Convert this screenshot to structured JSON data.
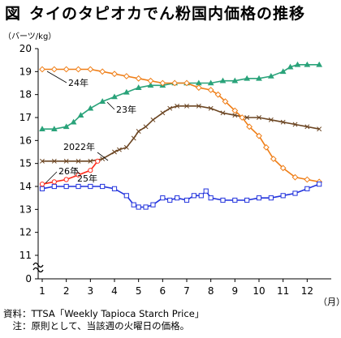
{
  "figure": {
    "label": "図",
    "title": "タイのタピオカでん粉国内価格の推移"
  },
  "unit_label": "（バーツ/kg）",
  "month_unit": "（月）",
  "notes": {
    "source": "資料：TTSA「Weekly Tapioca Starch Price」",
    "note": "　注：原則として、当該週の火曜日の価格。"
  },
  "chart_data": {
    "type": "line",
    "x_ticks": [
      "1",
      "2",
      "3",
      "4",
      "5",
      "6",
      "7",
      "8",
      "9",
      "10",
      "11",
      "12"
    ],
    "y_ticks": [
      "0",
      "11",
      "12",
      "13",
      "14",
      "15",
      "16",
      "17",
      "18",
      "19",
      "20"
    ],
    "ylim": [
      11,
      20
    ],
    "axis_break": true,
    "grid": false,
    "series": [
      {
        "name": "2022年",
        "color": "#6b4522",
        "marker": "x",
        "x": [
          1,
          1.5,
          2,
          2.5,
          3,
          3.5,
          4,
          4.2,
          4.5,
          4.8,
          5,
          5.3,
          5.6,
          6,
          6.3,
          6.6,
          7,
          7.5,
          8,
          8.5,
          9,
          9.5,
          10,
          10.5,
          11,
          11.5,
          12,
          12.5
        ],
        "y": [
          15.1,
          15.1,
          15.1,
          15.1,
          15.1,
          15.2,
          15.5,
          15.6,
          15.7,
          16.1,
          16.4,
          16.6,
          16.9,
          17.2,
          17.4,
          17.5,
          17.5,
          17.5,
          17.4,
          17.2,
          17.1,
          17.0,
          17.0,
          16.9,
          16.8,
          16.7,
          16.6,
          16.5
        ]
      },
      {
        "name": "23年",
        "color": "#2aa37a",
        "marker": "triangle",
        "x": [
          1,
          1.5,
          2,
          2.3,
          2.6,
          3,
          3.5,
          4,
          4.5,
          5,
          5.5,
          6,
          6.5,
          7,
          7.5,
          8,
          8.5,
          9,
          9.5,
          10,
          10.5,
          11,
          11.3,
          11.6,
          12,
          12.5
        ],
        "y": [
          16.5,
          16.5,
          16.6,
          16.8,
          17.1,
          17.4,
          17.7,
          17.9,
          18.1,
          18.3,
          18.4,
          18.4,
          18.5,
          18.5,
          18.5,
          18.5,
          18.6,
          18.6,
          18.7,
          18.7,
          18.8,
          19.0,
          19.2,
          19.3,
          19.3,
          19.3
        ]
      },
      {
        "name": "24年",
        "color": "#ef7e17",
        "marker": "diamond",
        "x": [
          1,
          1.5,
          2,
          2.5,
          3,
          3.5,
          4,
          4.5,
          5,
          5.5,
          6,
          6.5,
          7,
          7.5,
          8,
          8.3,
          8.6,
          9,
          9.3,
          9.6,
          10,
          10.3,
          10.6,
          11,
          11.5,
          12,
          12.5
        ],
        "y": [
          19.1,
          19.1,
          19.1,
          19.1,
          19.1,
          19.0,
          18.9,
          18.8,
          18.7,
          18.6,
          18.5,
          18.5,
          18.5,
          18.3,
          18.2,
          18.0,
          17.7,
          17.3,
          17.0,
          16.6,
          16.2,
          15.7,
          15.2,
          14.8,
          14.4,
          14.3,
          14.2
        ]
      },
      {
        "name": "25年",
        "color": "#2233dd",
        "marker": "square",
        "x": [
          1,
          1.5,
          2,
          2.5,
          3,
          3.5,
          4,
          4.5,
          4.8,
          5,
          5.3,
          5.6,
          6,
          6.3,
          6.6,
          7,
          7.3,
          7.6,
          7.8,
          8,
          8.5,
          9,
          9.5,
          10,
          10.5,
          11,
          11.5,
          12,
          12.5
        ],
        "y": [
          13.9,
          14.0,
          14.0,
          14.0,
          14.0,
          14.0,
          13.9,
          13.6,
          13.2,
          13.1,
          13.1,
          13.2,
          13.5,
          13.4,
          13.5,
          13.4,
          13.6,
          13.6,
          13.8,
          13.5,
          13.4,
          13.4,
          13.4,
          13.5,
          13.5,
          13.6,
          13.7,
          13.9,
          14.1
        ]
      },
      {
        "name": "26年",
        "color": "#ff2a1a",
        "marker": "circle",
        "x": [
          1,
          1.5,
          2,
          2.5,
          3,
          3.3
        ],
        "y": [
          14.1,
          14.2,
          14.3,
          14.5,
          14.7,
          15.1
        ]
      }
    ]
  }
}
